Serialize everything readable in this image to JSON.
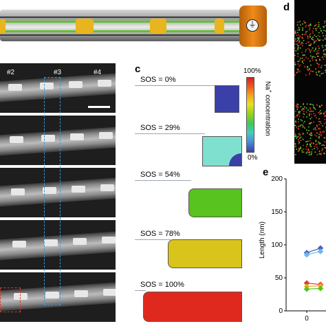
{
  "panels": {
    "c": "c",
    "d": "d",
    "e": "e"
  },
  "micrograph": {
    "labels": [
      "#2",
      "#3",
      "#4"
    ]
  },
  "sos_rows": [
    {
      "label": "SOS = 0%",
      "color": "#3b3fa8"
    },
    {
      "label": "SOS = 29%",
      "color": "#7fe0d0"
    },
    {
      "label": "SOS = 54%",
      "color": "#58c21e"
    },
    {
      "label": "SOS = 78%",
      "color": "#d8c41a"
    },
    {
      "label": "SOS = 100%",
      "color": "#e0291e"
    }
  ],
  "colorbar": {
    "top_label": "100%",
    "bottom_label": "0%",
    "title_main": "Na",
    "title_sup": "+",
    "title_rest": "concentration"
  },
  "chart_e": {
    "ylabel": "Length (nm)",
    "yticks": [
      "200",
      "150",
      "100",
      "50",
      "0"
    ],
    "xticks": [
      "0"
    ],
    "series": [
      {
        "values": [
          88,
          95
        ],
        "color": "#4a5ec9"
      },
      {
        "values": [
          85,
          90
        ],
        "color": "#6bbbe8"
      },
      {
        "values": [
          42,
          40
        ],
        "color": "#e03a2a"
      },
      {
        "values": [
          37,
          38
        ],
        "color": "#e8b02a"
      },
      {
        "values": [
          33,
          34
        ],
        "color": "#58c21e"
      }
    ]
  }
}
